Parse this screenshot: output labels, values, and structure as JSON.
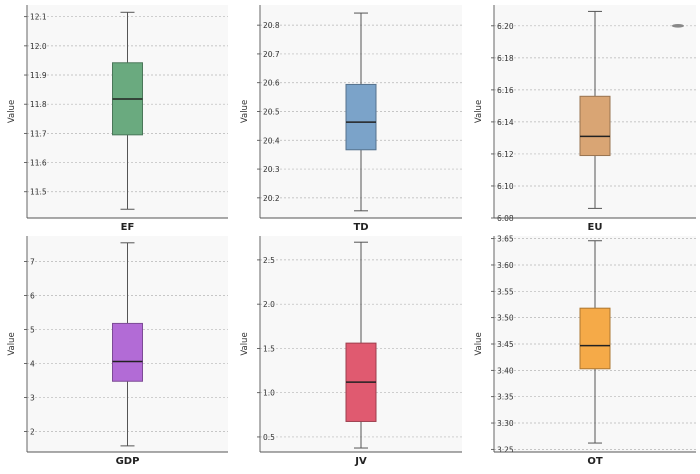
{
  "chart_data": [
    {
      "type": "box",
      "category": "EF",
      "ylabel": "Value",
      "ylim": [
        11.41,
        12.14
      ],
      "yticks": [
        11.5,
        11.6,
        11.7,
        11.8,
        11.9,
        12.0,
        12.1
      ],
      "yticklabels": [
        "11.5",
        "11.6",
        "11.7",
        "11.8",
        "11.9",
        "12.0",
        "12.1"
      ],
      "stats": {
        "min": 11.44,
        "q1": 11.695,
        "median": 11.818,
        "q3": 11.942,
        "max": 12.115
      },
      "color": "#6aaa7f",
      "grid": true
    },
    {
      "type": "box",
      "category": "TD",
      "ylabel": "Value",
      "ylim": [
        20.13,
        20.87
      ],
      "yticks": [
        20.2,
        20.3,
        20.4,
        20.5,
        20.6,
        20.7,
        20.8
      ],
      "yticklabels": [
        "20.2",
        "20.3",
        "20.4",
        "20.5",
        "20.6",
        "20.7",
        "20.8"
      ],
      "stats": {
        "min": 20.155,
        "q1": 20.367,
        "median": 20.463,
        "q3": 20.594,
        "max": 20.842
      },
      "color": "#7ba3c9",
      "grid": true
    },
    {
      "type": "box",
      "category": "EU",
      "ylabel": "Value",
      "ylim": [
        6.08,
        6.213
      ],
      "yticks": [
        6.08,
        6.1,
        6.12,
        6.14,
        6.16,
        6.18,
        6.2
      ],
      "yticklabels": [
        "6.08",
        "6.10",
        "6.12",
        "6.14",
        "6.16",
        "6.18",
        "6.20"
      ],
      "stats": {
        "min": 6.086,
        "q1": 6.119,
        "median": 6.131,
        "q3": 6.156,
        "max": 6.209
      },
      "outliers": [
        6.2
      ],
      "color": "#d9a574",
      "grid": true
    },
    {
      "type": "box",
      "category": "GDP",
      "ylabel": "Value",
      "ylim": [
        1.4,
        7.75
      ],
      "yticks": [
        2,
        3,
        4,
        5,
        6,
        7
      ],
      "yticklabels": [
        "2",
        "3",
        "4",
        "5",
        "6",
        "7"
      ],
      "stats": {
        "min": 1.58,
        "q1": 3.48,
        "median": 4.06,
        "q3": 5.18,
        "max": 7.55
      },
      "color": "#b26bd6",
      "grid": true
    },
    {
      "type": "box",
      "category": "JV",
      "ylabel": "Value",
      "ylim": [
        0.33,
        2.77
      ],
      "yticks": [
        0.5,
        1.0,
        1.5,
        2.0,
        2.5
      ],
      "yticklabels": [
        "0.5",
        "1.0",
        "1.5",
        "2.0",
        "2.5"
      ],
      "stats": {
        "min": 0.375,
        "q1": 0.675,
        "median": 1.12,
        "q3": 1.56,
        "max": 2.7
      },
      "color": "#e05a70",
      "grid": true
    },
    {
      "type": "box",
      "category": "OT",
      "ylabel": "Value",
      "ylim": [
        3.245,
        3.655
      ],
      "yticks": [
        3.25,
        3.3,
        3.35,
        3.4,
        3.45,
        3.5,
        3.55,
        3.6,
        3.65
      ],
      "yticklabels": [
        "3.25",
        "3.30",
        "3.35",
        "3.40",
        "3.45",
        "3.50",
        "3.55",
        "3.60",
        "3.65"
      ],
      "stats": {
        "min": 3.262,
        "q1": 3.403,
        "median": 3.447,
        "q3": 3.518,
        "max": 3.646
      },
      "color": "#f5aa48",
      "grid": true
    }
  ]
}
